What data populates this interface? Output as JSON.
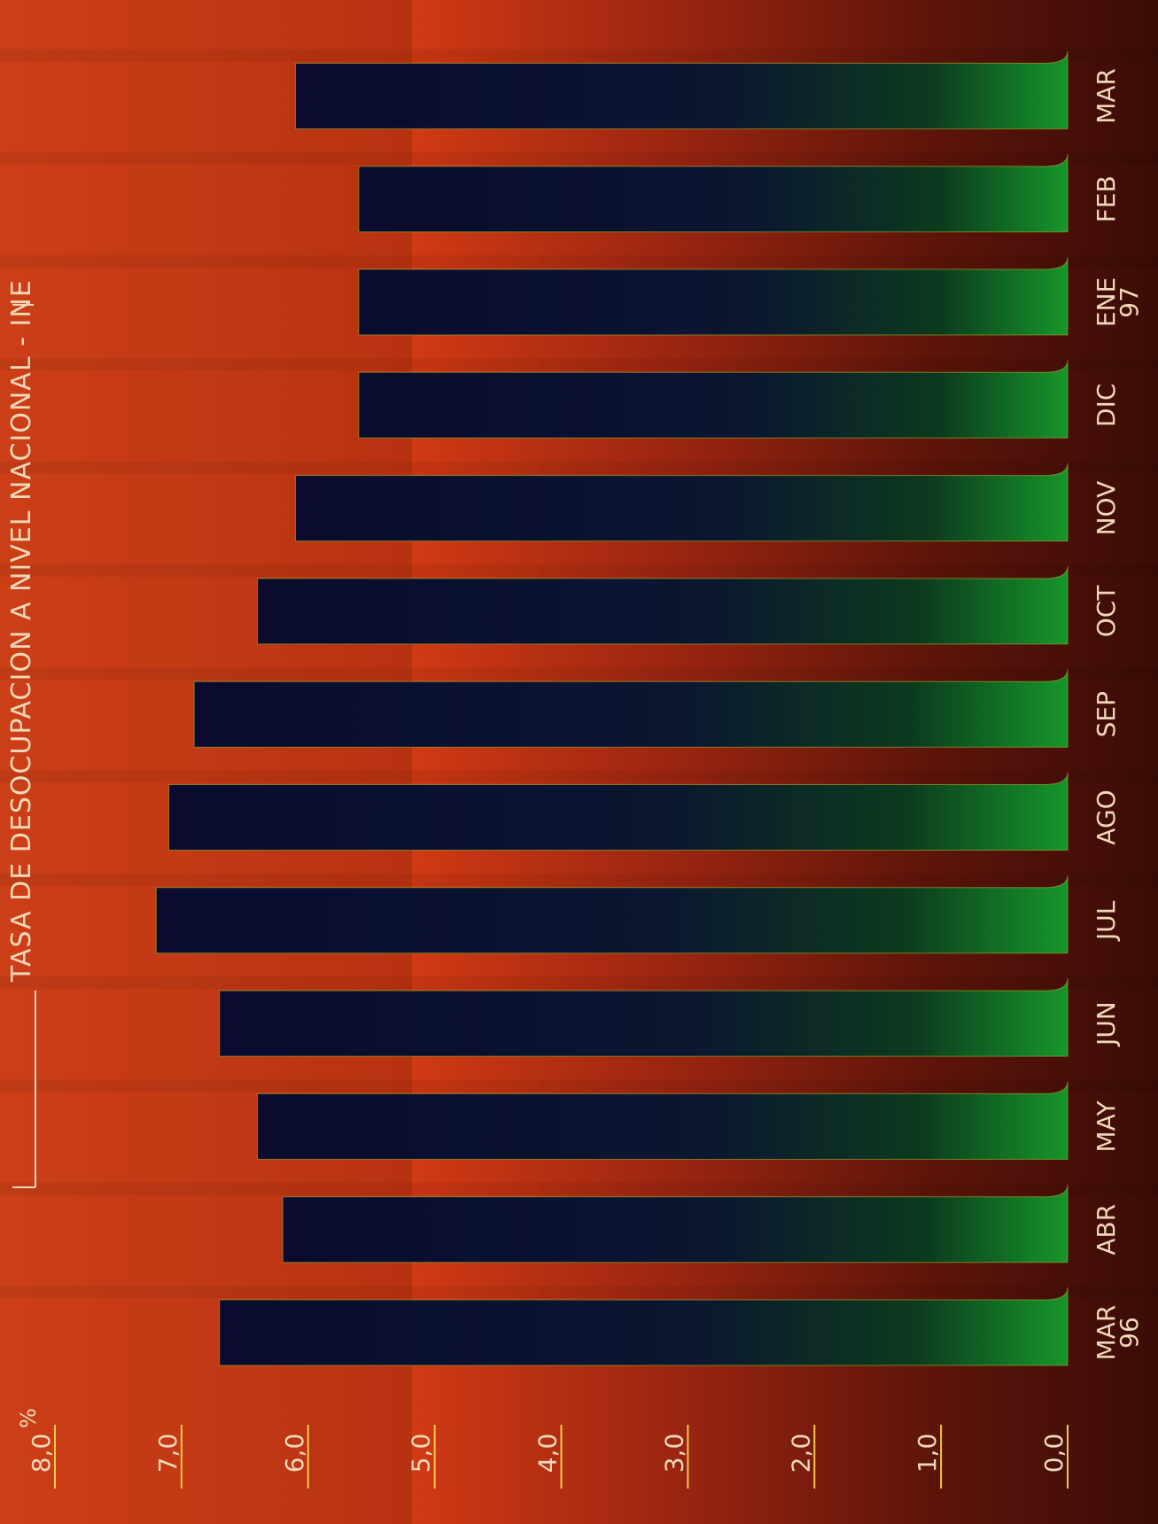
{
  "chart_data": {
    "type": "bar",
    "orientation": "horizontal",
    "title": "TASA DE DESOCUPACION A NIVEL NACIONAL - INE",
    "unit": "%",
    "categories": [
      {
        "label": "MAR",
        "sublabel": "96"
      },
      {
        "label": "ABR",
        "sublabel": ""
      },
      {
        "label": "MAY",
        "sublabel": ""
      },
      {
        "label": "JUN",
        "sublabel": ""
      },
      {
        "label": "JUL",
        "sublabel": ""
      },
      {
        "label": "AGO",
        "sublabel": ""
      },
      {
        "label": "SEP",
        "sublabel": ""
      },
      {
        "label": "OCT",
        "sublabel": ""
      },
      {
        "label": "NOV",
        "sublabel": ""
      },
      {
        "label": "DIC",
        "sublabel": ""
      },
      {
        "label": "ENE",
        "sublabel": "97"
      },
      {
        "label": "FEB",
        "sublabel": ""
      },
      {
        "label": "MAR",
        "sublabel": ""
      }
    ],
    "values": [
      6.7,
      6.2,
      6.4,
      6.7,
      7.2,
      7.1,
      6.9,
      6.4,
      6.1,
      5.6,
      5.6,
      5.6,
      6.1
    ],
    "ticks": [
      "0,0",
      "1,0",
      "2,0",
      "3,0",
      "4,0",
      "5,0",
      "6,0",
      "7,0",
      "8,0"
    ],
    "ylim": [
      0,
      8
    ],
    "grid": false,
    "legend": "none",
    "colors": {
      "background_light": "#e2421a",
      "background_dark": "#5a1208",
      "bar_tip": "#14962a",
      "bar_body": "#0b0c2e",
      "text": "#f1d9b8",
      "tick_line": "#f2c84a"
    }
  }
}
